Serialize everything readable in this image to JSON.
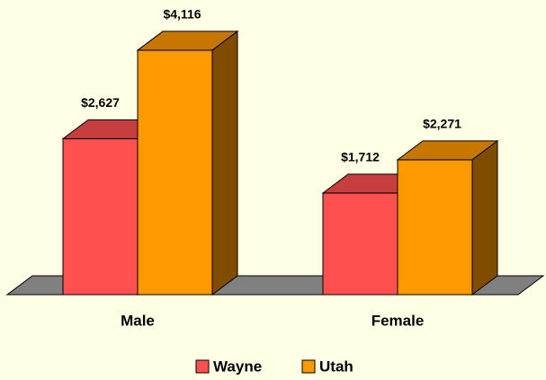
{
  "chart_data": {
    "type": "bar3d",
    "categories": [
      "Male",
      "Female"
    ],
    "series": [
      {
        "name": "Wayne",
        "color": "#FF5050",
        "values": [
          2627,
          1712
        ],
        "value_labels": [
          "$2,627",
          "$1,712"
        ]
      },
      {
        "name": "Utah",
        "color": "#FF9900",
        "values": [
          4116,
          2271
        ],
        "value_labels": [
          "$4,116",
          "$2,271"
        ]
      }
    ]
  }
}
